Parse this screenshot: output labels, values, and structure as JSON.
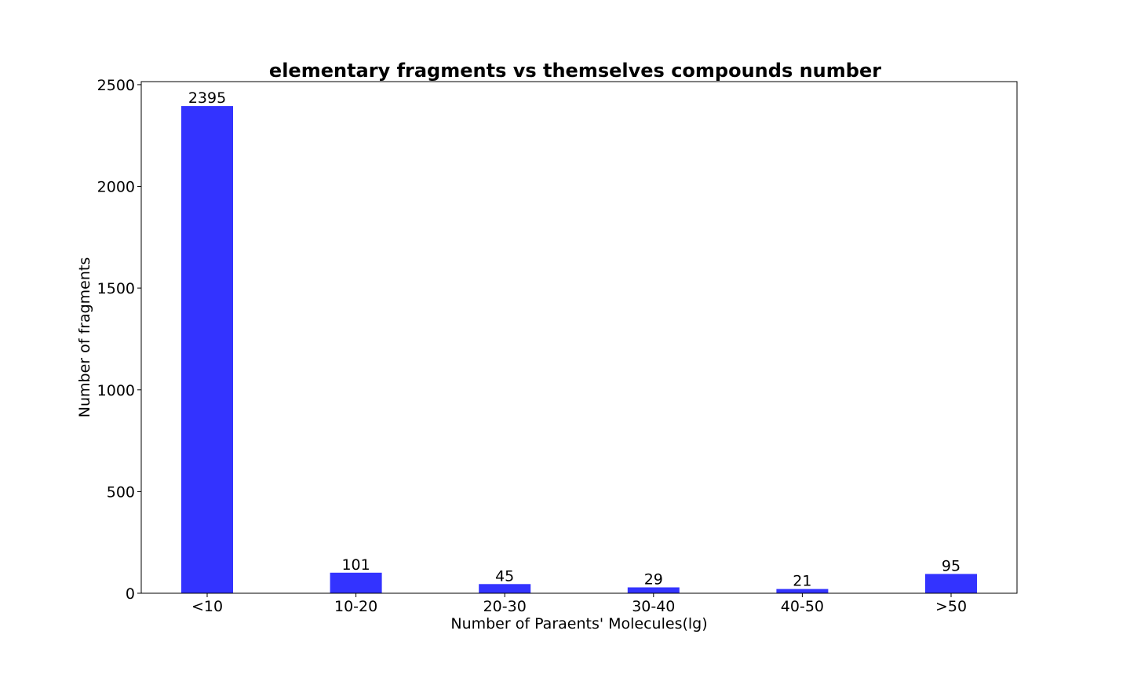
{
  "chart_data": {
    "type": "bar",
    "title": "elementary fragments vs themselves compounds number",
    "xlabel": "Number of Paraents' Molecules(lg)",
    "ylabel": "Number of fragments",
    "categories": [
      "<10",
      "10-20",
      "20-30",
      "30-40",
      "40-50",
      ">50"
    ],
    "values": [
      2395,
      101,
      45,
      29,
      21,
      95
    ],
    "data_labels": [
      "2395",
      "101",
      "45",
      "29",
      "21",
      "95"
    ],
    "yticks": [
      0,
      500,
      1000,
      1500,
      2000,
      2500
    ],
    "ytick_labels": [
      "0",
      "500",
      "1000",
      "1500",
      "2000",
      "2500"
    ],
    "ylim": [
      0,
      2515
    ],
    "bar_color": "#3333ff",
    "grid": false,
    "legend": "none"
  }
}
